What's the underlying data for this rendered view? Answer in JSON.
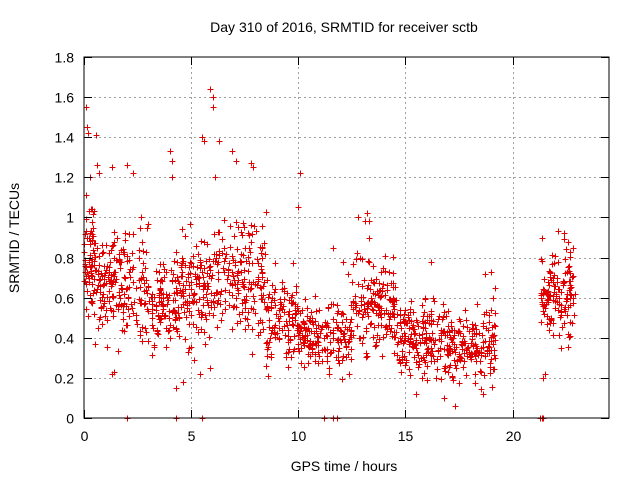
{
  "chart_data": {
    "type": "scatter",
    "title": "Day 310 of 2016, SRMTID for receiver sctb",
    "xlabel": "GPS time / hours",
    "ylabel": "SRMTID / TECUs",
    "xlim": [
      0,
      24.5
    ],
    "ylim": [
      0,
      1.8
    ],
    "xticks": [
      0,
      5,
      10,
      15,
      20
    ],
    "yticks": [
      0,
      0.2,
      0.4,
      0.6,
      0.8,
      1,
      1.2,
      1.4,
      1.6,
      1.8
    ],
    "xtick_labels": [
      "0",
      "5",
      "10",
      "15",
      "20"
    ],
    "ytick_labels": [
      "0",
      "0.2",
      "0.4",
      "0.6",
      "0.8",
      "1",
      "1.2",
      "1.4",
      "1.6",
      "1.8"
    ],
    "grid": true,
    "marker": "+",
    "marker_color": "#e00000",
    "series": [
      {
        "name": "SRMTID",
        "bands": [
          {
            "x": [
              0,
              0.5
            ],
            "y": [
              0.35,
              1.1
            ],
            "n": 70
          },
          {
            "x": [
              0.5,
              3
            ],
            "y": [
              0.25,
              0.95
            ],
            "n": 190
          },
          {
            "x": [
              3,
              4.5
            ],
            "y": [
              0.25,
              0.8
            ],
            "n": 110
          },
          {
            "x": [
              4.5,
              6
            ],
            "y": [
              0.2,
              0.95
            ],
            "n": 120
          },
          {
            "x": [
              6,
              8.5
            ],
            "y": [
              0.3,
              1.0
            ],
            "n": 180
          },
          {
            "x": [
              8.5,
              10
            ],
            "y": [
              0.15,
              0.75
            ],
            "n": 110
          },
          {
            "x": [
              10,
              12.5
            ],
            "y": [
              0.15,
              0.6
            ],
            "n": 170
          },
          {
            "x": [
              12.5,
              14.5
            ],
            "y": [
              0.2,
              0.8
            ],
            "n": 150
          },
          {
            "x": [
              14.5,
              17
            ],
            "y": [
              0.12,
              0.6
            ],
            "n": 190
          },
          {
            "x": [
              17,
              19.2
            ],
            "y": [
              0.12,
              0.55
            ],
            "n": 160
          },
          {
            "x": [
              21.3,
              22.9
            ],
            "y": [
              0.3,
              0.85
            ],
            "n": 130
          }
        ],
        "points": [
          [
            0.08,
            1.55
          ],
          [
            0.12,
            1.45
          ],
          [
            0.2,
            1.42
          ],
          [
            0.55,
            1.41
          ],
          [
            0.3,
            1.2
          ],
          [
            0.6,
            1.26
          ],
          [
            0.7,
            1.22
          ],
          [
            1.3,
            1.25
          ],
          [
            2.0,
            1.26
          ],
          [
            2.3,
            1.22
          ],
          [
            4.0,
            1.33
          ],
          [
            4.1,
            1.28
          ],
          [
            4.1,
            1.2
          ],
          [
            5.5,
            1.4
          ],
          [
            5.6,
            1.38
          ],
          [
            5.9,
            1.64
          ],
          [
            6.0,
            1.6
          ],
          [
            6.0,
            1.55
          ],
          [
            6.3,
            1.38
          ],
          [
            6.9,
            1.33
          ],
          [
            7.1,
            1.28
          ],
          [
            7.8,
            1.27
          ],
          [
            7.9,
            1.25
          ],
          [
            6.1,
            1.2
          ],
          [
            10.1,
            1.22
          ],
          [
            10.0,
            1.05
          ],
          [
            12.8,
            1.0
          ],
          [
            13.1,
            0.98
          ],
          [
            13.2,
            1.02
          ],
          [
            13.3,
            0.98
          ],
          [
            13.3,
            0.9
          ],
          [
            13.3,
            0.78
          ],
          [
            11.6,
            0.85
          ],
          [
            12.1,
            0.78
          ],
          [
            12.3,
            0.72
          ],
          [
            16.2,
            0.78
          ],
          [
            18.7,
            0.72
          ],
          [
            19.0,
            0.73
          ],
          [
            19.2,
            0.65
          ],
          [
            19.1,
            0.6
          ],
          [
            22.1,
            0.93
          ],
          [
            22.4,
            0.92
          ],
          [
            22.6,
            0.88
          ],
          [
            22.8,
            0.85
          ],
          [
            22.7,
            0.83
          ],
          [
            5.9,
            0.25
          ],
          [
            5.4,
            0.22
          ],
          [
            4.3,
            0.15
          ],
          [
            4.6,
            0.18
          ],
          [
            1.3,
            0.22
          ],
          [
            1.4,
            0.23
          ],
          [
            17.3,
            0.06
          ],
          [
            16.8,
            0.1
          ],
          [
            15.5,
            0.12
          ],
          [
            18.6,
            0.12
          ],
          [
            21.4,
            0.2
          ],
          [
            21.5,
            0.22
          ],
          [
            2.0,
            0.0
          ],
          [
            4.3,
            0.0
          ],
          [
            5.5,
            0.0
          ],
          [
            11.2,
            0.0
          ],
          [
            11.6,
            0.0
          ],
          [
            11.8,
            0.0
          ],
          [
            21.3,
            0.0
          ],
          [
            21.35,
            0.0
          ],
          [
            21.4,
            0.0
          ]
        ]
      }
    ]
  }
}
